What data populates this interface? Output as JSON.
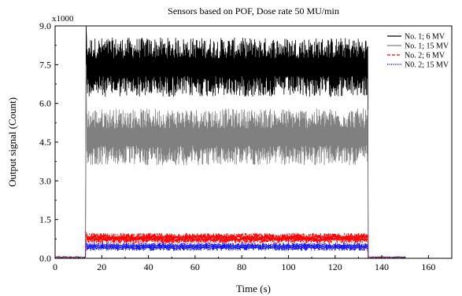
{
  "chart_data": {
    "type": "line",
    "title": "Sensors based on POF, Dose rate 50 MU/min",
    "xlabel": "Time (s)",
    "ylabel": "Output signal (Count)",
    "y_multiplier_label": "x1000",
    "xlim": [
      0,
      170
    ],
    "ylim": [
      0,
      9.0
    ],
    "x_ticks": [
      0,
      20,
      40,
      60,
      80,
      100,
      120,
      140,
      160
    ],
    "x_tick_labels": [
      "0",
      "20",
      "40",
      "60",
      "80",
      "100",
      "120",
      "140",
      "160"
    ],
    "y_ticks": [
      0,
      1.5,
      3.0,
      4.5,
      6.0,
      7.5,
      9.0
    ],
    "y_tick_labels": [
      "0.0",
      "1.5",
      "3.0",
      "4.5",
      "6.0",
      "7.5",
      "9.0"
    ],
    "grid": false,
    "legend_position": "top-right",
    "beam_on": 13,
    "beam_off": 134,
    "series": [
      {
        "name": "No. 1; 6 MV",
        "color": "#000000",
        "dash": "solid",
        "baseline": 0.05,
        "noise_low": 6.1,
        "noise_high": 8.4,
        "center": 7.4,
        "spike": 9.0
      },
      {
        "name": "No. 1; 15 MV",
        "color": "#808080",
        "dash": "solid",
        "baseline": 0.05,
        "noise_low": 3.6,
        "noise_high": 5.8,
        "center": 4.7,
        "spike": 7.5
      },
      {
        "name": "No. 2; 6 MV",
        "color": "#ff0000",
        "dash": "dashed",
        "baseline": 0.03,
        "noise_low": 0.55,
        "noise_high": 0.95,
        "center": 0.78,
        "spike": 1.0
      },
      {
        "name": "N0. 2; 15 MV",
        "color": "#0000ff",
        "dash": "dotted",
        "baseline": 0.02,
        "noise_low": 0.28,
        "noise_high": 0.6,
        "center": 0.45,
        "spike": 0.65
      }
    ]
  }
}
